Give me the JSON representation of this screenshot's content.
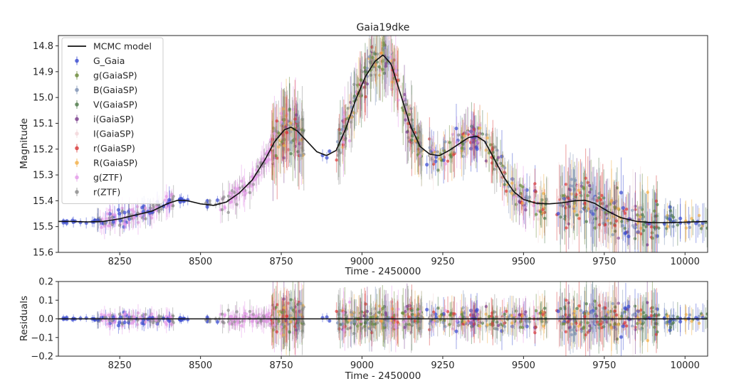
{
  "chart_data": {
    "type": "scatter",
    "title": "Gaia19dke",
    "colors": {
      "model": "#111111",
      "G_Gaia": "#3a4bd0",
      "g_GaiaSP": "#6b8a3a",
      "B_GaiaSP": "#7f93b5",
      "V_GaiaSP": "#4f7a4a",
      "i_GaiaSP": "#7a3f8c",
      "I_GaiaSP": "#f2d6d9",
      "r_GaiaSP": "#d83a3a",
      "R_GaiaSP": "#f2b04a",
      "g_ZTF": "#e49ae8",
      "r_ZTF": "#8c8c8c"
    },
    "top_panel": {
      "ylabel": "Magnitude",
      "xlabel": "Time - 2450000",
      "xlim": [
        8060,
        10070
      ],
      "ylim": [
        15.6,
        14.76
      ],
      "y_inverted": true,
      "xticks": [
        8250,
        8500,
        8750,
        9000,
        9250,
        9500,
        9750,
        10000
      ],
      "yticks": [
        14.8,
        14.9,
        15.0,
        15.1,
        15.2,
        15.3,
        15.4,
        15.5,
        15.6
      ],
      "ytick_labels": [
        "14.8",
        "14.9",
        "15.0",
        "15.1",
        "15.2",
        "15.3",
        "15.4",
        "15.5",
        "15.6"
      ],
      "legend_position": "upper-left",
      "legend": [
        {
          "key": "model",
          "label": "MCMC model",
          "kind": "line"
        },
        {
          "key": "G_Gaia",
          "label": "G_Gaia",
          "kind": "errpoint"
        },
        {
          "key": "g_GaiaSP",
          "label": "g(GaiaSP)",
          "kind": "errpoint"
        },
        {
          "key": "B_GaiaSP",
          "label": "B(GaiaSP)",
          "kind": "errpoint"
        },
        {
          "key": "V_GaiaSP",
          "label": "V(GaiaSP)",
          "kind": "errpoint"
        },
        {
          "key": "i_GaiaSP",
          "label": "i(GaiaSP)",
          "kind": "errpoint"
        },
        {
          "key": "I_GaiaSP",
          "label": "I(GaiaSP)",
          "kind": "errpoint"
        },
        {
          "key": "r_GaiaSP",
          "label": "r(GaiaSP)",
          "kind": "errpoint"
        },
        {
          "key": "R_GaiaSP",
          "label": "R(GaiaSP)",
          "kind": "errpoint"
        },
        {
          "key": "g_ZTF",
          "label": "g(ZTF)",
          "kind": "errpoint"
        },
        {
          "key": "r_ZTF",
          "label": "r(ZTF)",
          "kind": "errpoint"
        }
      ],
      "model_curve": {
        "x": [
          8060,
          8100,
          8150,
          8200,
          8250,
          8300,
          8350,
          8400,
          8430,
          8460,
          8500,
          8540,
          8580,
          8620,
          8660,
          8700,
          8730,
          8760,
          8780,
          8800,
          8830,
          8860,
          8890,
          8920,
          8950,
          8980,
          9010,
          9040,
          9065,
          9090,
          9120,
          9150,
          9180,
          9210,
          9240,
          9270,
          9300,
          9330,
          9355,
          9380,
          9410,
          9440,
          9470,
          9500,
          9540,
          9580,
          9620,
          9660,
          9690,
          9720,
          9760,
          9800,
          9850,
          9900,
          9950,
          10000,
          10070
        ],
        "y": [
          15.48,
          15.48,
          15.482,
          15.48,
          15.47,
          15.455,
          15.44,
          15.41,
          15.398,
          15.4,
          15.412,
          15.418,
          15.405,
          15.37,
          15.32,
          15.24,
          15.17,
          15.125,
          15.115,
          15.13,
          15.17,
          15.21,
          15.225,
          15.205,
          15.12,
          15.01,
          14.92,
          14.86,
          14.835,
          14.87,
          14.99,
          15.11,
          15.19,
          15.22,
          15.225,
          15.205,
          15.18,
          15.155,
          15.15,
          15.17,
          15.24,
          15.31,
          15.365,
          15.395,
          15.41,
          15.412,
          15.408,
          15.4,
          15.398,
          15.41,
          15.44,
          15.465,
          15.48,
          15.485,
          15.485,
          15.483,
          15.48
        ]
      }
    },
    "residual_panel": {
      "ylabel": "Residuals",
      "xlabel": "Time - 2450000",
      "xlim": [
        8060,
        10070
      ],
      "ylim": [
        -0.2,
        0.2
      ],
      "xticks": [
        8250,
        8500,
        8750,
        9000,
        9250,
        9500,
        9750,
        10000
      ],
      "yticks": [
        -0.2,
        -0.1,
        0.0,
        0.1,
        0.2
      ],
      "ytick_labels": [
        "−0.2",
        "−0.1",
        "0.0",
        "0.1",
        "0.2"
      ],
      "zero_line": 0.0
    },
    "observation_windows": [
      {
        "x0": 8070,
        "x1": 8180,
        "bands": [
          "G_Gaia"
        ],
        "spread": 0.008,
        "n": 14
      },
      {
        "x0": 8180,
        "x1": 8420,
        "bands": [
          "g_ZTF",
          "r_ZTF",
          "g_ZTF",
          "G_Gaia"
        ],
        "spread": 0.02,
        "n": 140
      },
      {
        "x0": 8420,
        "x1": 8470,
        "bands": [
          "G_Gaia"
        ],
        "spread": 0.01,
        "n": 8
      },
      {
        "x0": 8500,
        "x1": 8560,
        "bands": [
          "G_Gaia",
          "r_ZTF"
        ],
        "spread": 0.01,
        "n": 10
      },
      {
        "x0": 8560,
        "x1": 8720,
        "bands": [
          "g_ZTF",
          "r_ZTF",
          "g_ZTF"
        ],
        "spread": 0.025,
        "n": 90
      },
      {
        "x0": 8720,
        "x1": 8820,
        "bands": [
          "g_GaiaSP",
          "B_GaiaSP",
          "V_GaiaSP",
          "i_GaiaSP",
          "r_GaiaSP",
          "R_GaiaSP",
          "g_ZTF",
          "r_ZTF",
          "I_GaiaSP"
        ],
        "spread": 0.06,
        "n": 130
      },
      {
        "x0": 8870,
        "x1": 8900,
        "bands": [
          "G_Gaia"
        ],
        "spread": 0.01,
        "n": 3
      },
      {
        "x0": 8920,
        "x1": 9190,
        "bands": [
          "g_GaiaSP",
          "B_GaiaSP",
          "V_GaiaSP",
          "i_GaiaSP",
          "r_GaiaSP",
          "R_GaiaSP",
          "I_GaiaSP",
          "r_ZTF",
          "g_ZTF"
        ],
        "spread": 0.05,
        "n": 230
      },
      {
        "x0": 9200,
        "x1": 9580,
        "bands": [
          "g_GaiaSP",
          "B_GaiaSP",
          "V_GaiaSP",
          "i_GaiaSP",
          "r_GaiaSP",
          "R_GaiaSP",
          "I_GaiaSP",
          "r_ZTF",
          "g_ZTF",
          "G_Gaia"
        ],
        "spread": 0.04,
        "n": 230
      },
      {
        "x0": 9600,
        "x1": 9920,
        "bands": [
          "G_Gaia",
          "g_GaiaSP",
          "B_GaiaSP",
          "V_GaiaSP",
          "i_GaiaSP",
          "r_GaiaSP",
          "R_GaiaSP",
          "I_GaiaSP"
        ],
        "spread": 0.06,
        "n": 220
      },
      {
        "x0": 9930,
        "x1": 10070,
        "bands": [
          "G_Gaia",
          "V_GaiaSP",
          "R_GaiaSP",
          "B_GaiaSP"
        ],
        "spread": 0.03,
        "n": 40
      }
    ]
  }
}
